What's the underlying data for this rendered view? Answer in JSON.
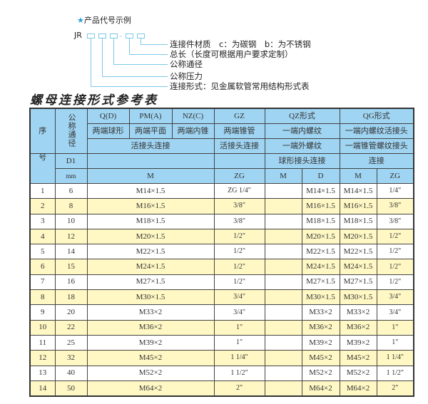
{
  "example": {
    "star_icon": "star-icon",
    "heading": "产品代号示例",
    "code_prefix": "JR",
    "dash": "-",
    "labels": [
      "连接件材质　c：为碳钢　b：为不锈钢",
      "总长（长度可根据用户要求定制）",
      "公称通径",
      "公称压力",
      "连接形式：见金属软管常用结构形式表"
    ]
  },
  "table_title": "螺母连接形式参考表",
  "header": {
    "seq": "序",
    "seq2": "号",
    "nominal": "公称通径",
    "d1": "D1",
    "mm": "mm",
    "types": {
      "qd": "Q(D)",
      "pma": "PM(A)",
      "nzc": "NZ(C)",
      "gz": "GZ",
      "qz": "QZ形式",
      "qg": "QG形式"
    },
    "desc1": {
      "qd": "两端球形",
      "pma": "两端平面",
      "nzc": "两端内锥",
      "gz": "两端锥管",
      "qz": "一端内螺纹",
      "qg": "一端内螺纹活接头"
    },
    "desc2": {
      "left": "活接头连接",
      "gz": "活接头连接",
      "qz": "一端外螺纹",
      "qg": "一端锥管螺纹接头"
    },
    "desc3": {
      "qz": "球形接头连接",
      "qg": "连接"
    },
    "units": {
      "m": "M",
      "zg": "ZG",
      "qz_m": "M",
      "qz_d": "D",
      "qg_m": "M",
      "qg_zg": "ZG"
    }
  },
  "rows": [
    {
      "no": "1",
      "dn": "6",
      "m": "M14×1.5",
      "zg": "ZG 1/4\"",
      "qz_m": "",
      "qz_d": "M14×1.5",
      "qg_m": "M14×1.5",
      "qg_zg": "1/4\""
    },
    {
      "no": "2",
      "dn": "8",
      "m": "M16×1.5",
      "zg": "3/8\"",
      "qz_m": "",
      "qz_d": "M16×1.5",
      "qg_m": "M16×1.5",
      "qg_zg": "3/8\""
    },
    {
      "no": "3",
      "dn": "10",
      "m": "M18×1.5",
      "zg": "3/8\"",
      "qz_m": "",
      "qz_d": "M18×1.5",
      "qg_m": "M18×1.5",
      "qg_zg": "3/8\""
    },
    {
      "no": "4",
      "dn": "12",
      "m": "M20×1.5",
      "zg": "1/2\"",
      "qz_m": "",
      "qz_d": "M20×1.5",
      "qg_m": "M20×1.5",
      "qg_zg": "1/2\""
    },
    {
      "no": "5",
      "dn": "14",
      "m": "M22×1.5",
      "zg": "1/2\"",
      "qz_m": "",
      "qz_d": "M22×1.5",
      "qg_m": "M22×1.5",
      "qg_zg": "1/2\""
    },
    {
      "no": "6",
      "dn": "15",
      "m": "M24×1.5",
      "zg": "1/2\"",
      "qz_m": "",
      "qz_d": "M24×1.5",
      "qg_m": "M24×1.5",
      "qg_zg": "1/2\""
    },
    {
      "no": "7",
      "dn": "16",
      "m": "M27×1.5",
      "zg": "1/2\"",
      "qz_m": "",
      "qz_d": "M27×1.5",
      "qg_m": "M27×1.5",
      "qg_zg": "1/2\""
    },
    {
      "no": "8",
      "dn": "18",
      "m": "M30×1.5",
      "zg": "3/4\"",
      "qz_m": "",
      "qz_d": "M30×1.5",
      "qg_m": "M30×1.5",
      "qg_zg": "3/4\""
    },
    {
      "no": "9",
      "dn": "20",
      "m": "M33×2",
      "zg": "3/4\"",
      "qz_m": "",
      "qz_d": "M33×2",
      "qg_m": "M33×2",
      "qg_zg": "3/4\""
    },
    {
      "no": "10",
      "dn": "22",
      "m": "M36×2",
      "zg": "1\"",
      "qz_m": "",
      "qz_d": "M36×2",
      "qg_m": "M36×2",
      "qg_zg": "1\""
    },
    {
      "no": "11",
      "dn": "25",
      "m": "M39×2",
      "zg": "1\"",
      "qz_m": "",
      "qz_d": "M39×2",
      "qg_m": "M39×2",
      "qg_zg": "1\""
    },
    {
      "no": "12",
      "dn": "32",
      "m": "M45×2",
      "zg": "1 1/4\"",
      "qz_m": "",
      "qz_d": "M45×2",
      "qg_m": "M45×2",
      "qg_zg": "1 1/4\""
    },
    {
      "no": "13",
      "dn": "40",
      "m": "M52×2",
      "zg": "1 1/2\"",
      "qz_m": "",
      "qz_d": "M52×2",
      "qg_m": "M52×2",
      "qg_zg": "1 1/2\""
    },
    {
      "no": "14",
      "dn": "50",
      "m": "M64×2",
      "zg": "2\"",
      "qz_m": "",
      "qz_d": "M64×2",
      "qg_m": "M64×2",
      "qg_zg": "2\""
    }
  ],
  "colors": {
    "header_bg": "#9fd4f2",
    "alt_row": "#fff8c4",
    "accent": "#2a9fd6"
  }
}
